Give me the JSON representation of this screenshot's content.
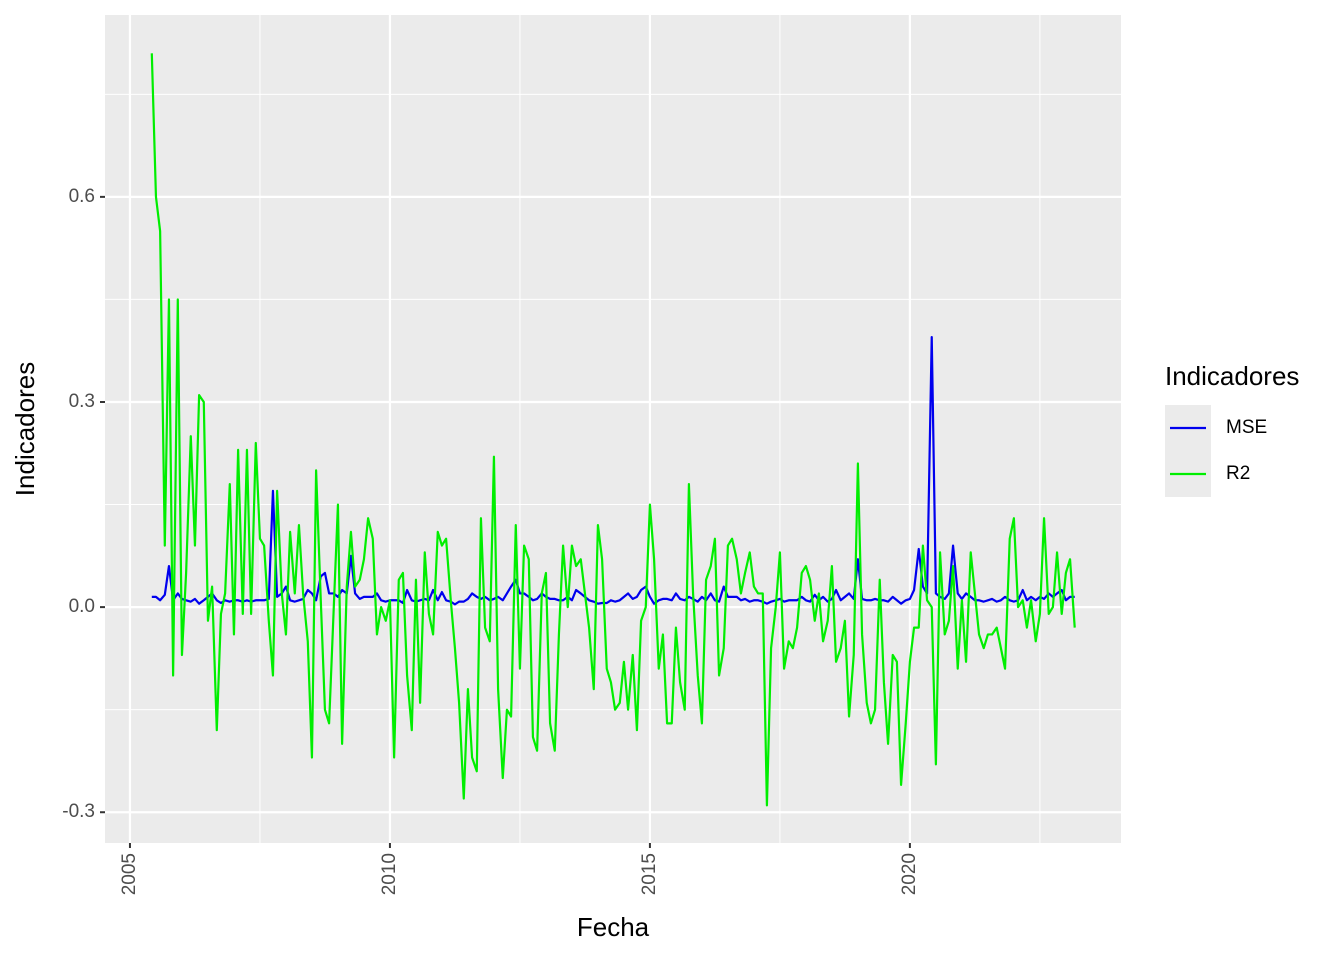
{
  "chart_data": {
    "type": "line",
    "x_label": "Fecha",
    "y_label": "Indicadores",
    "legend_title": "Indicadores",
    "legend_position": "right",
    "grid": true,
    "xlim": [
      2004.52,
      2024.06
    ],
    "xticks": [
      2005,
      2010,
      2015,
      2020
    ],
    "ylim": [
      -0.345,
      0.866
    ],
    "yticks": [
      -0.3,
      {
        "value": 0,
        "label": "0.0"
      },
      0.3,
      0.6
    ],
    "x": [
      2005.42,
      2005.5,
      2005.58,
      2005.67,
      2005.75,
      2005.83,
      2005.92,
      2006,
      2006.08,
      2006.17,
      2006.25,
      2006.33,
      2006.42,
      2006.5,
      2006.58,
      2006.67,
      2006.75,
      2006.83,
      2006.92,
      2007,
      2007.08,
      2007.17,
      2007.25,
      2007.33,
      2007.42,
      2007.5,
      2007.58,
      2007.67,
      2007.75,
      2007.83,
      2007.92,
      2008,
      2008.08,
      2008.17,
      2008.25,
      2008.33,
      2008.42,
      2008.5,
      2008.58,
      2008.67,
      2008.75,
      2008.83,
      2008.92,
      2009,
      2009.08,
      2009.17,
      2009.25,
      2009.33,
      2009.42,
      2009.5,
      2009.58,
      2009.67,
      2009.75,
      2009.83,
      2009.92,
      2010,
      2010.08,
      2010.17,
      2010.25,
      2010.33,
      2010.42,
      2010.5,
      2010.58,
      2010.67,
      2010.75,
      2010.83,
      2010.92,
      2011,
      2011.08,
      2011.17,
      2011.25,
      2011.33,
      2011.42,
      2011.5,
      2011.58,
      2011.67,
      2011.75,
      2011.83,
      2011.92,
      2012,
      2012.08,
      2012.17,
      2012.25,
      2012.33,
      2012.42,
      2012.5,
      2012.58,
      2012.67,
      2012.75,
      2012.83,
      2012.92,
      2013,
      2013.08,
      2013.17,
      2013.25,
      2013.33,
      2013.42,
      2013.5,
      2013.58,
      2013.67,
      2013.75,
      2013.83,
      2013.92,
      2014,
      2014.08,
      2014.17,
      2014.25,
      2014.33,
      2014.42,
      2014.5,
      2014.58,
      2014.67,
      2014.75,
      2014.83,
      2014.92,
      2015,
      2015.08,
      2015.17,
      2015.25,
      2015.33,
      2015.42,
      2015.5,
      2015.58,
      2015.67,
      2015.75,
      2015.83,
      2015.92,
      2016,
      2016.08,
      2016.17,
      2016.25,
      2016.33,
      2016.42,
      2016.5,
      2016.58,
      2016.67,
      2016.75,
      2016.83,
      2016.92,
      2017,
      2017.08,
      2017.17,
      2017.25,
      2017.33,
      2017.42,
      2017.5,
      2017.58,
      2017.67,
      2017.75,
      2017.83,
      2017.92,
      2018,
      2018.08,
      2018.17,
      2018.25,
      2018.33,
      2018.42,
      2018.5,
      2018.58,
      2018.67,
      2018.75,
      2018.83,
      2018.92,
      2019,
      2019.08,
      2019.17,
      2019.25,
      2019.33,
      2019.42,
      2019.5,
      2019.58,
      2019.67,
      2019.75,
      2019.83,
      2019.92,
      2020,
      2020.08,
      2020.17,
      2020.25,
      2020.33,
      2020.42,
      2020.5,
      2020.58,
      2020.67,
      2020.75,
      2020.83,
      2020.92,
      2021,
      2021.08,
      2021.17,
      2021.25,
      2021.33,
      2021.42,
      2021.5,
      2021.58,
      2021.67,
      2021.75,
      2021.83,
      2021.92,
      2022,
      2022.08,
      2022.17,
      2022.25,
      2022.33,
      2022.42,
      2022.5,
      2022.58,
      2022.67,
      2022.75,
      2022.83,
      2022.92,
      2023,
      2023.08,
      2023.17
    ],
    "series": [
      {
        "name": "MSE",
        "color": "#0000ee",
        "values": [
          0.015,
          0.015,
          0.01,
          0.018,
          0.06,
          0.01,
          0.02,
          0.012,
          0.01,
          0.008,
          0.012,
          0.005,
          0.01,
          0.015,
          0.02,
          0.01,
          0.006,
          0.01,
          0.008,
          0.01,
          0.01,
          0.008,
          0.01,
          0.008,
          0.01,
          0.01,
          0.01,
          0.012,
          0.17,
          0.015,
          0.02,
          0.03,
          0.01,
          0.008,
          0.01,
          0.012,
          0.025,
          0.02,
          0.01,
          0.045,
          0.05,
          0.02,
          0.02,
          0.015,
          0.025,
          0.02,
          0.075,
          0.02,
          0.012,
          0.015,
          0.015,
          0.015,
          0.02,
          0.01,
          0.008,
          0.01,
          0.01,
          0.01,
          0.006,
          0.025,
          0.01,
          0.008,
          0.01,
          0.012,
          0.01,
          0.025,
          0.01,
          0.022,
          0.01,
          0.008,
          0.004,
          0.008,
          0.008,
          0.012,
          0.02,
          0.015,
          0.012,
          0.015,
          0.01,
          0.012,
          0.015,
          0.01,
          0.02,
          0.03,
          0.04,
          0.02,
          0.02,
          0.015,
          0.01,
          0.012,
          0.02,
          0.015,
          0.012,
          0.012,
          0.01,
          0.01,
          0.015,
          0.01,
          0.025,
          0.02,
          0.015,
          0.01,
          0.008,
          0.005,
          0.006,
          0.006,
          0.01,
          0.008,
          0.01,
          0.015,
          0.02,
          0.012,
          0.015,
          0.025,
          0.03,
          0.015,
          0.005,
          0.01,
          0.012,
          0.012,
          0.01,
          0.02,
          0.012,
          0.01,
          0.015,
          0.012,
          0.008,
          0.015,
          0.01,
          0.02,
          0.01,
          0.008,
          0.03,
          0.015,
          0.015,
          0.015,
          0.01,
          0.012,
          0.008,
          0.01,
          0.01,
          0.008,
          0.005,
          0.008,
          0.01,
          0.012,
          0.008,
          0.01,
          0.01,
          0.01,
          0.015,
          0.01,
          0.008,
          0.018,
          0.01,
          0.015,
          0.008,
          0.012,
          0.025,
          0.01,
          0.015,
          0.02,
          0.012,
          0.07,
          0.012,
          0.01,
          0.01,
          0.012,
          0.01,
          0.01,
          0.008,
          0.015,
          0.01,
          0.005,
          0.01,
          0.012,
          0.025,
          0.085,
          0.03,
          0.02,
          0.395,
          0.02,
          0.015,
          0.012,
          0.02,
          0.09,
          0.02,
          0.012,
          0.02,
          0.015,
          0.01,
          0.01,
          0.008,
          0.01,
          0.012,
          0.008,
          0.01,
          0.015,
          0.01,
          0.008,
          0.01,
          0.025,
          0.01,
          0.015,
          0.01,
          0.015,
          0.012,
          0.02,
          0.015,
          0.02,
          0.025,
          0.01,
          0.015,
          0.015
        ]
      },
      {
        "name": "R2",
        "color": "#00ee00",
        "values": [
          0.81,
          0.6,
          0.55,
          0.09,
          0.45,
          -0.1,
          0.45,
          -0.07,
          0.05,
          0.25,
          0.09,
          0.31,
          0.3,
          -0.02,
          0.03,
          -0.18,
          -0.01,
          0.02,
          0.18,
          -0.04,
          0.23,
          -0.01,
          0.23,
          -0.01,
          0.24,
          0.1,
          0.09,
          -0.02,
          -0.1,
          0.17,
          0.02,
          -0.04,
          0.11,
          0.02,
          0.12,
          0.02,
          -0.05,
          -0.22,
          0.2,
          0.01,
          -0.15,
          -0.17,
          0,
          0.15,
          -0.2,
          0.03,
          0.11,
          0.03,
          0.04,
          0.07,
          0.13,
          0.1,
          -0.04,
          0,
          -0.02,
          0.01,
          -0.22,
          0.04,
          0.05,
          -0.1,
          -0.18,
          0.04,
          -0.14,
          0.08,
          -0.01,
          -0.04,
          0.11,
          0.09,
          0.1,
          0.01,
          -0.06,
          -0.14,
          -0.28,
          -0.12,
          -0.22,
          -0.24,
          0.13,
          -0.03,
          -0.05,
          0.22,
          -0.12,
          -0.25,
          -0.15,
          -0.16,
          0.12,
          -0.09,
          0.09,
          0.07,
          -0.19,
          -0.21,
          0.02,
          0.05,
          -0.17,
          -0.21,
          -0.04,
          0.09,
          0,
          0.09,
          0.06,
          0.07,
          0.02,
          -0.03,
          -0.12,
          0.12,
          0.07,
          -0.09,
          -0.11,
          -0.15,
          -0.14,
          -0.08,
          -0.15,
          -0.07,
          -0.18,
          -0.02,
          0,
          0.15,
          0.07,
          -0.09,
          -0.04,
          -0.17,
          -0.17,
          -0.03,
          -0.11,
          -0.15,
          0.18,
          0.02,
          -0.1,
          -0.17,
          0.04,
          0.06,
          0.1,
          -0.1,
          -0.06,
          0.09,
          0.1,
          0.07,
          0.02,
          0.05,
          0.08,
          0.03,
          0.02,
          0.02,
          -0.29,
          -0.06,
          0,
          0.08,
          -0.09,
          -0.05,
          -0.06,
          -0.03,
          0.05,
          0.06,
          0.04,
          -0.02,
          0.02,
          -0.05,
          -0.02,
          0.06,
          -0.08,
          -0.06,
          -0.02,
          -0.16,
          -0.07,
          0.21,
          -0.04,
          -0.14,
          -0.17,
          -0.15,
          0.04,
          -0.11,
          -0.2,
          -0.07,
          -0.08,
          -0.26,
          -0.17,
          -0.08,
          -0.03,
          -0.03,
          0.09,
          0.01,
          0,
          -0.23,
          0.08,
          -0.04,
          -0.02,
          0.06,
          -0.09,
          0.01,
          -0.08,
          0.08,
          0.02,
          -0.04,
          -0.06,
          -0.04,
          -0.04,
          -0.03,
          -0.06,
          -0.09,
          0.1,
          0.13,
          0,
          0.01,
          -0.03,
          0.01,
          -0.05,
          -0.01,
          0.13,
          -0.01,
          0,
          0.08,
          -0.01,
          0.05,
          0.07,
          -0.03
        ]
      }
    ]
  }
}
